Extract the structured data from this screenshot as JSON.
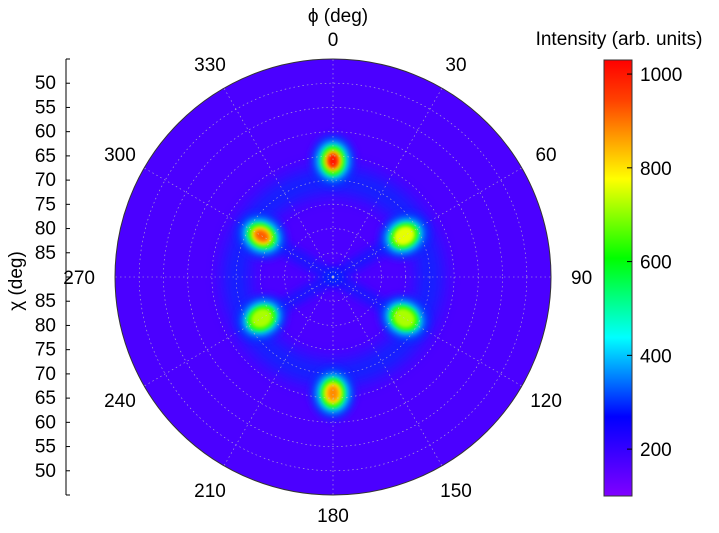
{
  "chart_data": {
    "type": "heatmap",
    "subtype": "polar-pole-figure",
    "phi_axis_label": "ϕ (deg)",
    "chi_axis_label": "χ (deg)",
    "colorbar_label": "Intensity (arb. units)",
    "phi_ticks": [
      "0",
      "30",
      "60",
      "90",
      "120",
      "150",
      "180",
      "210",
      "240",
      "270",
      "300",
      "330"
    ],
    "chi_ticks": [
      "50",
      "55",
      "60",
      "65",
      "70",
      "75",
      "80",
      "85"
    ],
    "chi_range": [
      45,
      90
    ],
    "colorbar_ticks": [
      "200",
      "400",
      "600",
      "800",
      "1000"
    ],
    "colorbar_range": [
      100,
      1030
    ],
    "grid": true,
    "background_intensity": 170,
    "peaks": [
      {
        "phi": 0,
        "chi": 66,
        "intensity": 1000
      },
      {
        "phi": 60,
        "chi": 73,
        "intensity": 760
      },
      {
        "phi": 120,
        "chi": 73,
        "intensity": 720
      },
      {
        "phi": 180,
        "chi": 66,
        "intensity": 880
      },
      {
        "phi": 240,
        "chi": 73,
        "intensity": 720
      },
      {
        "phi": 300,
        "chi": 73,
        "intensity": 920
      }
    ],
    "ring": {
      "chi": 70,
      "intensity": 300
    },
    "streak_intensity": 290,
    "colormap": [
      "#8000ff",
      "#4000ff",
      "#0000ff",
      "#0080ff",
      "#00ffff",
      "#00ff80",
      "#00ff00",
      "#80ff00",
      "#ffff00",
      "#ffa000",
      "#ff4000",
      "#ff0000"
    ]
  }
}
